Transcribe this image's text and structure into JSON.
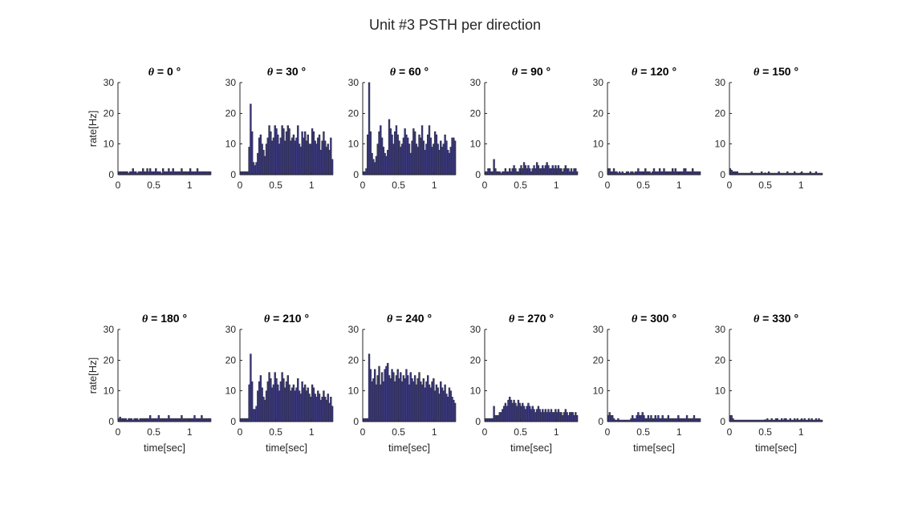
{
  "figure": {
    "title": "Unit #3 PSTH per direction"
  },
  "chart_data": [
    {
      "type": "bar",
      "title_prefix": "θ",
      "title_rest": " = 0 °",
      "xlim": [
        0,
        1.3
      ],
      "ylim": [
        0,
        30
      ],
      "xticks": [
        "0",
        "0.5",
        "1"
      ],
      "yticks": [
        "0",
        "10",
        "20",
        "30"
      ],
      "ylabel": "rate[Hz]",
      "xlabel": "",
      "bar_color": "#3d3a8c",
      "bin_width": 0.02,
      "values": [
        1,
        1,
        1,
        1,
        1,
        1,
        1,
        0.5,
        1,
        1,
        2,
        1,
        1,
        0.5,
        1,
        1,
        1,
        2,
        1,
        1,
        2,
        1,
        2,
        1,
        1,
        1,
        2,
        1,
        1,
        1,
        0.5,
        2,
        1,
        1,
        1,
        2,
        1,
        1,
        2,
        1,
        1,
        1,
        1,
        1,
        2,
        1,
        1,
        1,
        1,
        1,
        2,
        1,
        1,
        1,
        1,
        2,
        1,
        1,
        1,
        1,
        1,
        1,
        1,
        1,
        1
      ]
    },
    {
      "type": "bar",
      "title_prefix": "θ",
      "title_rest": " = 30 °",
      "xlim": [
        0,
        1.3
      ],
      "ylim": [
        0,
        30
      ],
      "xticks": [
        "0",
        "0.5",
        "1"
      ],
      "yticks": [
        "0",
        "10",
        "20",
        "30"
      ],
      "ylabel": "",
      "xlabel": "",
      "bar_color": "#3d3a8c",
      "bin_width": 0.02,
      "values": [
        1,
        1,
        1,
        1,
        1,
        1,
        9,
        23,
        14,
        4,
        3,
        4,
        7,
        12,
        13,
        10,
        8,
        6,
        10,
        12,
        16,
        14,
        11,
        12,
        16,
        15,
        13,
        10,
        12,
        16,
        15,
        11,
        14,
        16,
        15,
        11,
        12,
        13,
        11,
        12,
        16,
        10,
        9,
        14,
        12,
        14,
        11,
        13,
        10,
        10,
        15,
        14,
        11,
        10,
        12,
        13,
        8,
        11,
        14,
        11,
        9,
        10,
        8,
        12,
        5
      ]
    },
    {
      "type": "bar",
      "title_prefix": "θ",
      "title_rest": " = 60 °",
      "xlim": [
        0,
        1.3
      ],
      "ylim": [
        0,
        30
      ],
      "xticks": [
        "0",
        "0.5",
        "1"
      ],
      "yticks": [
        "0",
        "10",
        "20",
        "30"
      ],
      "ylabel": "",
      "xlabel": "",
      "bar_color": "#3d3a8c",
      "bin_width": 0.02,
      "values": [
        1,
        1,
        2,
        13,
        30,
        14,
        7,
        5,
        4,
        6,
        10,
        14,
        16,
        12,
        9,
        7,
        6,
        8,
        18,
        15,
        13,
        10,
        14,
        16,
        13,
        11,
        9,
        10,
        12,
        15,
        13,
        12,
        10,
        7,
        11,
        15,
        14,
        10,
        9,
        13,
        12,
        16,
        11,
        8,
        10,
        13,
        16,
        12,
        9,
        10,
        14,
        13,
        10,
        8,
        11,
        9,
        10,
        13,
        11,
        8,
        7,
        9,
        12,
        12,
        11
      ]
    },
    {
      "type": "bar",
      "title_prefix": "θ",
      "title_rest": " = 90 °",
      "xlim": [
        0,
        1.3
      ],
      "ylim": [
        0,
        30
      ],
      "xticks": [
        "0",
        "0.5",
        "1"
      ],
      "yticks": [
        "0",
        "10",
        "20",
        "30"
      ],
      "ylabel": "",
      "xlabel": "",
      "bar_color": "#3d3a8c",
      "bin_width": 0.02,
      "values": [
        1,
        1,
        2,
        2,
        1,
        1,
        5,
        2,
        1,
        1,
        1,
        0.5,
        1,
        1,
        2,
        1,
        1,
        2,
        1,
        2,
        3,
        2,
        1,
        1,
        2,
        3,
        2,
        4,
        3,
        2,
        3,
        2,
        1,
        2,
        3,
        2,
        4,
        3,
        2,
        2,
        3,
        2,
        3,
        4,
        3,
        2,
        2,
        3,
        2,
        3,
        2,
        3,
        2,
        2,
        1,
        2,
        3,
        2,
        2,
        1,
        2,
        1,
        2,
        2,
        1
      ]
    },
    {
      "type": "bar",
      "title_prefix": "θ",
      "title_rest": " = 120 °",
      "xlim": [
        0,
        1.3
      ],
      "ylim": [
        0,
        30
      ],
      "xticks": [
        "0",
        "0.5",
        "1"
      ],
      "yticks": [
        "0",
        "10",
        "20",
        "30"
      ],
      "ylabel": "",
      "xlabel": "",
      "bar_color": "#3d3a8c",
      "bin_width": 0.02,
      "values": [
        2,
        2,
        1,
        1,
        2,
        1,
        1,
        0.5,
        1,
        0.5,
        1,
        0.5,
        0.5,
        1,
        1,
        0.5,
        1,
        1,
        0.5,
        1,
        1,
        2,
        1,
        1,
        1,
        1,
        2,
        1,
        1,
        1,
        0.5,
        1,
        2,
        1,
        1,
        1,
        2,
        1,
        1,
        2,
        1,
        1,
        1,
        1,
        1,
        2,
        1,
        2,
        1,
        1,
        1,
        1,
        1,
        2,
        2,
        1,
        1,
        1,
        1,
        2,
        1,
        1,
        1,
        1,
        1
      ]
    },
    {
      "type": "bar",
      "title_prefix": "θ",
      "title_rest": " = 150 °",
      "xlim": [
        0,
        1.3
      ],
      "ylim": [
        0,
        30
      ],
      "xticks": [
        "0",
        "0.5",
        "1"
      ],
      "yticks": [
        "0",
        "10",
        "20",
        "30"
      ],
      "ylabel": "",
      "xlabel": "",
      "bar_color": "#3d3a8c",
      "bin_width": 0.02,
      "values": [
        2,
        1.5,
        1,
        1,
        1,
        1,
        0.5,
        0.5,
        0.5,
        0.5,
        0.5,
        0.5,
        0.5,
        0.5,
        0.5,
        1,
        0.5,
        0.5,
        0.5,
        0.5,
        0.5,
        0.5,
        1,
        0.5,
        0.5,
        0.5,
        0.5,
        1,
        0.5,
        0.5,
        0.5,
        0.5,
        0.5,
        0.5,
        1,
        0.5,
        0.5,
        0.5,
        0.5,
        0.5,
        1,
        0.5,
        0.5,
        0.5,
        0.5,
        1,
        0.5,
        0.5,
        0.5,
        0.5,
        1,
        0.5,
        0.5,
        0.5,
        0.5,
        0.5,
        1,
        0.5,
        0.5,
        0.5,
        1,
        0.5,
        0.5,
        0.5,
        0.5
      ]
    },
    {
      "type": "bar",
      "title_prefix": "θ",
      "title_rest": " = 180 °",
      "xlim": [
        0,
        1.3
      ],
      "ylim": [
        0,
        30
      ],
      "xticks": [
        "0",
        "0.5",
        "1"
      ],
      "yticks": [
        "0",
        "10",
        "20",
        "30"
      ],
      "ylabel": "rate[Hz]",
      "xlabel": "time[sec]",
      "bar_color": "#3d3a8c",
      "bin_width": 0.02,
      "values": [
        1,
        1.5,
        1,
        1,
        1,
        1,
        0.5,
        1,
        1,
        1,
        0.5,
        1,
        1,
        1,
        0.5,
        1,
        1,
        1,
        1,
        1,
        1,
        1,
        2,
        1,
        1,
        1,
        1,
        1,
        2,
        1,
        1,
        1,
        1,
        1,
        1,
        2,
        1,
        1,
        1,
        1,
        1,
        1,
        1,
        1,
        2,
        1,
        1,
        1,
        1,
        1,
        1,
        1,
        1,
        2,
        1,
        1,
        1,
        1,
        2,
        1,
        1,
        1,
        1,
        1,
        1
      ]
    },
    {
      "type": "bar",
      "title_prefix": "θ",
      "title_rest": " = 210 °",
      "xlim": [
        0,
        1.3
      ],
      "ylim": [
        0,
        30
      ],
      "xticks": [
        "0",
        "0.5",
        "1"
      ],
      "yticks": [
        "0",
        "10",
        "20",
        "30"
      ],
      "ylabel": "",
      "xlabel": "time[sec]",
      "bar_color": "#3d3a8c",
      "bin_width": 0.02,
      "values": [
        1,
        1,
        1,
        1,
        1,
        1,
        12,
        22,
        13,
        4,
        4,
        5,
        10,
        13,
        15,
        11,
        8,
        7,
        10,
        13,
        16,
        14,
        11,
        12,
        16,
        14,
        12,
        10,
        13,
        16,
        14,
        11,
        13,
        15,
        12,
        10,
        11,
        12,
        10,
        11,
        14,
        10,
        9,
        13,
        11,
        12,
        10,
        11,
        9,
        8,
        12,
        11,
        9,
        8,
        10,
        9,
        7,
        8,
        10,
        8,
        7,
        9,
        6,
        8,
        5
      ]
    },
    {
      "type": "bar",
      "title_prefix": "θ",
      "title_rest": " = 240 °",
      "xlim": [
        0,
        1.3
      ],
      "ylim": [
        0,
        30
      ],
      "xticks": [
        "0",
        "0.5",
        "1"
      ],
      "yticks": [
        "0",
        "10",
        "20",
        "30"
      ],
      "ylabel": "",
      "xlabel": "time[sec]",
      "bar_color": "#3d3a8c",
      "bin_width": 0.02,
      "values": [
        1,
        1,
        1,
        1,
        22,
        17,
        13,
        14,
        17,
        12,
        15,
        18,
        12,
        16,
        13,
        17,
        18,
        19,
        15,
        14,
        17,
        16,
        13,
        15,
        17,
        14,
        16,
        13,
        15,
        14,
        17,
        15,
        12,
        16,
        14,
        13,
        15,
        12,
        14,
        16,
        13,
        12,
        14,
        11,
        13,
        15,
        12,
        11,
        13,
        14,
        10,
        12,
        11,
        9,
        13,
        11,
        10,
        12,
        9,
        8,
        11,
        10,
        8,
        7,
        6
      ]
    },
    {
      "type": "bar",
      "title_prefix": "θ",
      "title_rest": " = 270 °",
      "xlim": [
        0,
        1.3
      ],
      "ylim": [
        0,
        30
      ],
      "xticks": [
        "0",
        "0.5",
        "1"
      ],
      "yticks": [
        "0",
        "10",
        "20",
        "30"
      ],
      "ylabel": "",
      "xlabel": "time[sec]",
      "bar_color": "#3d3a8c",
      "bin_width": 0.02,
      "values": [
        1,
        1,
        1,
        1,
        1,
        1,
        5,
        2,
        2,
        2,
        3,
        3,
        4,
        5,
        6,
        5,
        7,
        8,
        7,
        6,
        7,
        6,
        5,
        7,
        6,
        5,
        6,
        5,
        4,
        5,
        6,
        5,
        4,
        5,
        4,
        3,
        4,
        5,
        4,
        3,
        4,
        3,
        4,
        3,
        4,
        3,
        4,
        3,
        3,
        4,
        3,
        4,
        3,
        3,
        2,
        3,
        4,
        3,
        2,
        3,
        3,
        3,
        2,
        3,
        2
      ]
    },
    {
      "type": "bar",
      "title_prefix": "θ",
      "title_rest": " = 300 °",
      "xlim": [
        0,
        1.3
      ],
      "ylim": [
        0,
        30
      ],
      "xticks": [
        "0",
        "0.5",
        "1"
      ],
      "yticks": [
        "0",
        "10",
        "20",
        "30"
      ],
      "ylabel": "",
      "xlabel": "time[sec]",
      "bar_color": "#3d3a8c",
      "bin_width": 0.02,
      "values": [
        2,
        3,
        2,
        2,
        1,
        0.5,
        0.5,
        1,
        0.5,
        0.5,
        0.5,
        0.5,
        0.5,
        0.5,
        0.5,
        0.5,
        1,
        2,
        1,
        1,
        2,
        3,
        2,
        2,
        3,
        2,
        1,
        1,
        2,
        1,
        2,
        1,
        1,
        2,
        1,
        2,
        1,
        1,
        2,
        1,
        1,
        1,
        2,
        1,
        1,
        1,
        1,
        1,
        1,
        2,
        1,
        1,
        1,
        1,
        1,
        2,
        1,
        1,
        1,
        1,
        2,
        1,
        1,
        1,
        1
      ]
    },
    {
      "type": "bar",
      "title_prefix": "θ",
      "title_rest": " = 330 °",
      "xlim": [
        0,
        1.3
      ],
      "ylim": [
        0,
        30
      ],
      "xticks": [
        "0",
        "0.5",
        "1"
      ],
      "yticks": [
        "0",
        "10",
        "20",
        "30"
      ],
      "ylabel": "",
      "xlabel": "time[sec]",
      "bar_color": "#3d3a8c",
      "bin_width": 0.02,
      "values": [
        2,
        2,
        1,
        0.5,
        0.5,
        0.5,
        0.5,
        0.5,
        0.5,
        0.5,
        0.5,
        0.5,
        0.5,
        0.5,
        0.5,
        0.5,
        0.5,
        0.5,
        0.5,
        0.5,
        0.5,
        0.5,
        0.5,
        0.5,
        0.5,
        0.5,
        1,
        0.5,
        0.5,
        1,
        0.5,
        0.5,
        1,
        1,
        0.5,
        0.5,
        1,
        0.5,
        1,
        1,
        0.5,
        0.5,
        1,
        0.5,
        0.5,
        1,
        0.5,
        1,
        0.5,
        0.5,
        1,
        0.5,
        1,
        0.5,
        0.5,
        1,
        0.5,
        1,
        0.5,
        0.5,
        1,
        0.5,
        1,
        0.5,
        0.5
      ]
    }
  ]
}
